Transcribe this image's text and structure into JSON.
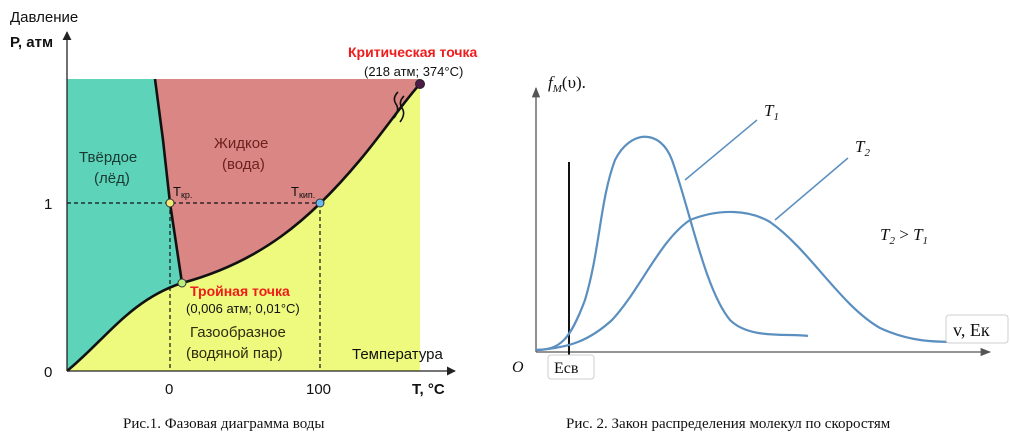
{
  "fig1": {
    "y_title": "Давление",
    "y_unit": "Р, атм",
    "x_title": "Температура",
    "x_unit": "T, °C",
    "y_ticks": [
      "1",
      "0"
    ],
    "x_ticks": [
      "0",
      "100"
    ],
    "solid": [
      "Твёрдое",
      "(лёд)"
    ],
    "liquid": [
      "Жидкое",
      "(вода)"
    ],
    "gas": [
      "Газообразное",
      "(водяной пар)"
    ],
    "t_melt": {
      "main": "T",
      "sub": "кр."
    },
    "t_boil": {
      "main": "T",
      "sub": "кип."
    },
    "critical_title": "Критическая точка",
    "critical_value": "(218 атм; 374°С)",
    "triple_title": "Тройная точка",
    "triple_value": "(0,006 атм; 0,01°С)",
    "caption": "Рис.1. Фазовая диаграмма воды",
    "colors": {
      "solid": "#5dd3b9",
      "liquid": "#d98684",
      "gas": "#eefa7d",
      "red_label": "#ee1c1c",
      "melt_point": "#f2ea74",
      "boil_point": "#6ab8ee",
      "triple_point": "#b8f080",
      "critical_point": "#4b1b4b"
    }
  },
  "fig2": {
    "y_func": "f",
    "y_func_sub": "M",
    "y_arg": "(υ).",
    "t1": "T",
    "t1_sub": "1",
    "t2": "T",
    "t2_sub": "2",
    "relation_a": "T",
    "relation_a_sub": "2",
    "relation_op": " > ",
    "relation_b": "T",
    "relation_b_sub": "1",
    "origin": "O",
    "x_axis_label": "v, Ек",
    "esv": "Есв",
    "caption": "Рис. 2. Закон распределения молекул по скоростям",
    "colors": {
      "curve": "#5b8fbf",
      "axis": "#555555"
    }
  }
}
